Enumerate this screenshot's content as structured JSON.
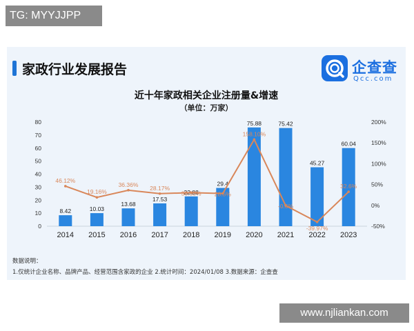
{
  "watermark_top": "TG: MYYJJPP",
  "watermark_bottom": "www.njliankan.com",
  "report_title": "家政行业发展报告",
  "logo": {
    "name": "企查查",
    "domain": "Qcc.com",
    "icon": "qcc-logo-icon"
  },
  "notes": {
    "title": "数据说明：",
    "line": "1.仅统计企业名称、品牌产品、经营范围含家政的企业  2.统计时间：2024/01/08  3.数据来源：企查查"
  },
  "colors": {
    "bar": "#2a86e0",
    "line": "#d9875a",
    "accent": "#1e74d6"
  },
  "chart_data": {
    "type": "bar",
    "title": "近十年家政相关企业注册量&增速",
    "subtitle": "（单位：万家）",
    "categories": [
      "2014",
      "2015",
      "2016",
      "2017",
      "2018",
      "2019",
      "2020",
      "2021",
      "2022",
      "2023"
    ],
    "series": [
      {
        "type": "bar",
        "axis": "left",
        "values": [
          8.42,
          10.03,
          13.68,
          17.53,
          22.88,
          29.4,
          75.88,
          75.42,
          45.27,
          60.04
        ],
        "labels": [
          "8.42",
          "10.03",
          "13.68",
          "17.53",
          "22.88",
          "29.4",
          "75.88",
          "75.42",
          "45.27",
          "60.04"
        ]
      },
      {
        "type": "line",
        "axis": "right",
        "values": [
          46.12,
          19.16,
          36.36,
          28.17,
          30.53,
          28.5,
          158.1,
          -0.61,
          -39.97,
          32.6
        ],
        "labels": [
          "46.12%",
          "19.16%",
          "36.36%",
          "28.17%",
          "30.53%",
          "28.5%",
          "158.10%",
          "-0.6%",
          "-39.97%",
          "32.6%"
        ]
      }
    ],
    "left_axis": {
      "ylim": [
        0,
        80
      ],
      "ticks": [
        "0",
        "10",
        "20",
        "30",
        "40",
        "50",
        "60",
        "70",
        "80"
      ]
    },
    "right_axis": {
      "ylim": [
        -50,
        200
      ],
      "ticks": [
        "-50%",
        "0%",
        "50%",
        "100%",
        "150%",
        "200%"
      ]
    },
    "grid": false,
    "legend": "none"
  }
}
